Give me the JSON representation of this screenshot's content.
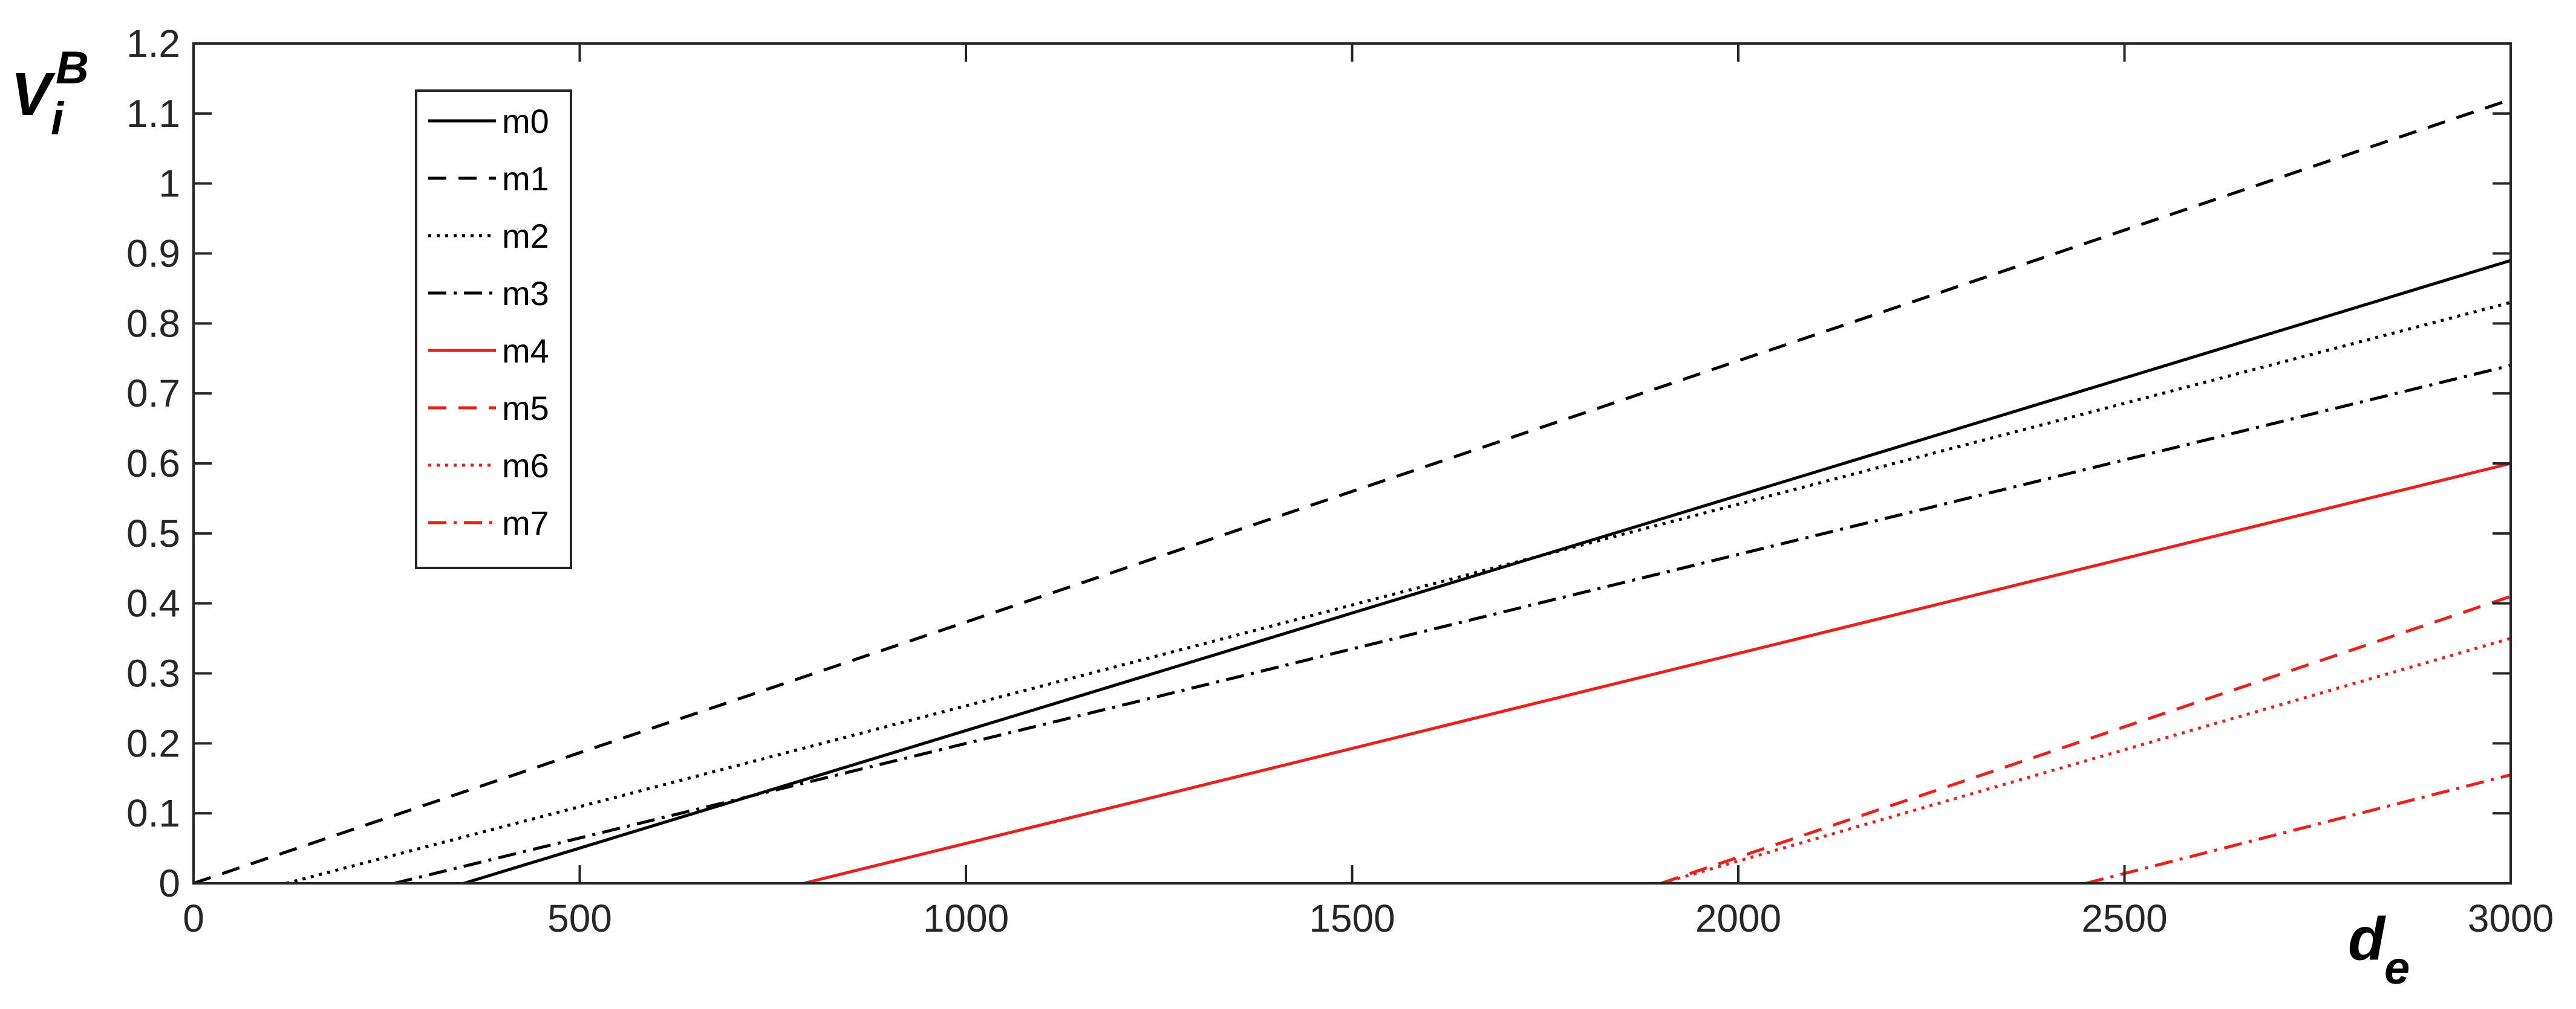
{
  "chart_data": {
    "type": "line",
    "xlabel": {
      "main": "d",
      "sub": "e"
    },
    "ylabel": {
      "main": "V",
      "sup": "B",
      "sub": "i"
    },
    "xlim": [
      0,
      3000
    ],
    "ylim": [
      0,
      1.2
    ],
    "xticks": [
      "0",
      "500",
      "1000",
      "1500",
      "2000",
      "2500",
      "3000"
    ],
    "yticks": [
      "0",
      "0.1",
      "0.2",
      "0.3",
      "0.4",
      "0.5",
      "0.6",
      "0.7",
      "0.8",
      "0.9",
      "1",
      "1.1",
      "1.2"
    ],
    "grid": false,
    "legend_position": "top-left",
    "series": [
      {
        "name": "m0",
        "color": "#000000",
        "dash": "solid",
        "x": [
          350,
          3000
        ],
        "y": [
          0,
          0.89
        ]
      },
      {
        "name": "m1",
        "color": "#000000",
        "dash": "dashed",
        "x": [
          0,
          3000
        ],
        "y": [
          0,
          1.12
        ]
      },
      {
        "name": "m2",
        "color": "#000000",
        "dash": "dotted",
        "x": [
          120,
          3000
        ],
        "y": [
          0,
          0.83
        ]
      },
      {
        "name": "m3",
        "color": "#000000",
        "dash": "dashdot",
        "x": [
          260,
          3000
        ],
        "y": [
          0,
          0.74
        ]
      },
      {
        "name": "m4",
        "color": "#e8221b",
        "dash": "solid",
        "x": [
          790,
          3000
        ],
        "y": [
          0,
          0.6
        ]
      },
      {
        "name": "m5",
        "color": "#e8221b",
        "dash": "dashed",
        "x": [
          1900,
          3000
        ],
        "y": [
          0,
          0.41
        ]
      },
      {
        "name": "m6",
        "color": "#e8221b",
        "dash": "dotted",
        "x": [
          1900,
          3000
        ],
        "y": [
          0,
          0.35
        ]
      },
      {
        "name": "m7",
        "color": "#e8221b",
        "dash": "dashdot",
        "x": [
          2450,
          3000
        ],
        "y": [
          0,
          0.155
        ]
      }
    ]
  }
}
